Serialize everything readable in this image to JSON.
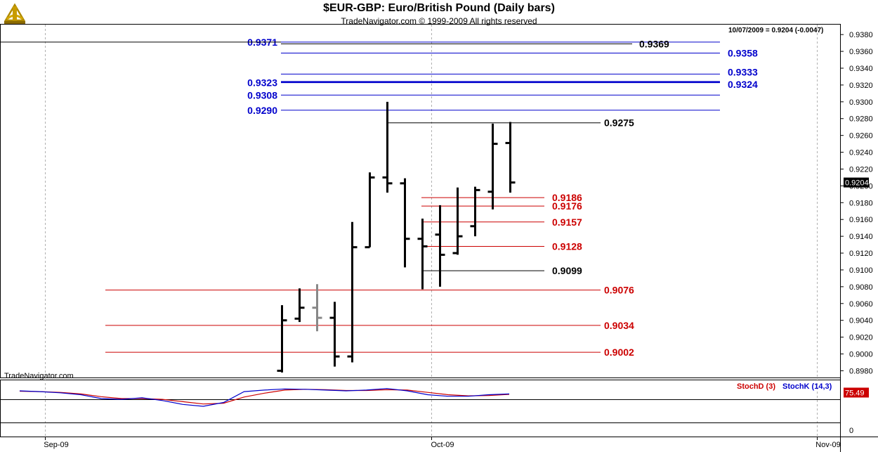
{
  "header": {
    "title": "$EUR-GBP:  Euro/British Pound  (Daily bars)",
    "subtitle": "TradeNavigator.com © 1999-2009 All rights reserved"
  },
  "watermark": "TradeNavigator.com",
  "info": "10/07/2009 = 0.9204 (-0.0047)",
  "colors": {
    "blue": "#0000cc",
    "red": "#cc0000",
    "black": "#000000",
    "gray": "#888888"
  },
  "chart_data": {
    "type": "ohlc",
    "ylim": [
      0.8972,
      0.9386
    ],
    "y_ticks": [
      "0.9380",
      "0.9360",
      "0.9340",
      "0.9320",
      "0.9300",
      "0.9280",
      "0.9260",
      "0.9240",
      "0.9220",
      "0.9200",
      "0.9180",
      "0.9160",
      "0.9140",
      "0.9120",
      "0.9100",
      "0.9080",
      "0.9060",
      "0.9040",
      "0.9020",
      "0.9000",
      "0.8980"
    ],
    "last_price": "0.9204",
    "x_labels": [
      "Sep-09",
      "Oct-09",
      "Nov-09"
    ],
    "bars": [
      {
        "o": 0.898,
        "h": 0.9058,
        "l": 0.8978,
        "c": 0.904
      },
      {
        "o": 0.9042,
        "h": 0.9078,
        "l": 0.9038,
        "c": 0.9055
      },
      {
        "o": 0.9055,
        "h": 0.9083,
        "l": 0.9027,
        "c": 0.9043,
        "gray": true
      },
      {
        "o": 0.9043,
        "h": 0.9062,
        "l": 0.8985,
        "c": 0.8997
      },
      {
        "o": 0.8997,
        "h": 0.9157,
        "l": 0.899,
        "c": 0.9127
      },
      {
        "o": 0.9127,
        "h": 0.9216,
        "l": 0.9127,
        "c": 0.921
      },
      {
        "o": 0.921,
        "h": 0.93,
        "l": 0.9192,
        "c": 0.9203
      },
      {
        "o": 0.9203,
        "h": 0.9209,
        "l": 0.9103,
        "c": 0.9137
      },
      {
        "o": 0.9137,
        "h": 0.9161,
        "l": 0.9077,
        "c": 0.9128
      },
      {
        "o": 0.9142,
        "h": 0.9177,
        "l": 0.908,
        "c": 0.9118
      },
      {
        "o": 0.912,
        "h": 0.9198,
        "l": 0.9118,
        "c": 0.914
      },
      {
        "o": 0.9152,
        "h": 0.9199,
        "l": 0.914,
        "c": 0.9195
      },
      {
        "o": 0.9193,
        "h": 0.9274,
        "l": 0.9172,
        "c": 0.925
      },
      {
        "o": 0.9251,
        "h": 0.9276,
        "l": 0.9192,
        "c": 0.9204
      }
    ],
    "levels": [
      {
        "value": 0.9371,
        "label": "0.9371",
        "color": "blue",
        "side": "left"
      },
      {
        "value": 0.9369,
        "label": "0.9369",
        "color": "black",
        "side": "right"
      },
      {
        "value": 0.9358,
        "label": "0.9358",
        "color": "blue",
        "side": "right"
      },
      {
        "value": 0.9333,
        "label": "0.9333",
        "color": "blue",
        "side": "right"
      },
      {
        "value": 0.9324,
        "label": "0.9324",
        "color": "blue",
        "side": "right"
      },
      {
        "value": 0.9323,
        "label": "0.9323",
        "color": "blue",
        "side": "left"
      },
      {
        "value": 0.9308,
        "label": "0.9308",
        "color": "blue",
        "side": "left"
      },
      {
        "value": 0.929,
        "label": "0.9290",
        "color": "blue",
        "side": "left"
      },
      {
        "value": 0.9275,
        "label": "0.9275",
        "color": "black",
        "side": "right"
      },
      {
        "value": 0.9186,
        "label": "0.9186",
        "color": "red",
        "side": "right"
      },
      {
        "value": 0.9176,
        "label": "0.9176",
        "color": "red",
        "side": "right"
      },
      {
        "value": 0.9157,
        "label": "0.9157",
        "color": "red",
        "side": "right"
      },
      {
        "value": 0.9128,
        "label": "0.9128",
        "color": "red",
        "side": "right"
      },
      {
        "value": 0.9099,
        "label": "0.9099",
        "color": "black",
        "side": "right"
      },
      {
        "value": 0.9076,
        "label": "0.9076",
        "color": "red",
        "side": "right"
      },
      {
        "value": 0.9034,
        "label": "0.9034",
        "color": "red",
        "side": "right"
      },
      {
        "value": 0.9002,
        "label": "0.9002",
        "color": "red",
        "side": "right"
      }
    ],
    "indicator": {
      "stochd_label": "StochD (3)",
      "stochk_label": "StochK (14,3)",
      "last_value": "75.49",
      "axis_label": "0",
      "stochK": [
        80,
        78,
        75,
        70,
        60,
        58,
        62,
        55,
        45,
        40,
        50,
        78,
        82,
        85,
        84,
        82,
        80,
        82,
        86,
        80,
        70,
        66,
        66,
        70,
        72
      ],
      "stochD": [
        79,
        78,
        76,
        72,
        65,
        60,
        60,
        58,
        52,
        46,
        48,
        64,
        74,
        82,
        84,
        83,
        81,
        81,
        83,
        82,
        76,
        70,
        67,
        68,
        71
      ]
    }
  }
}
